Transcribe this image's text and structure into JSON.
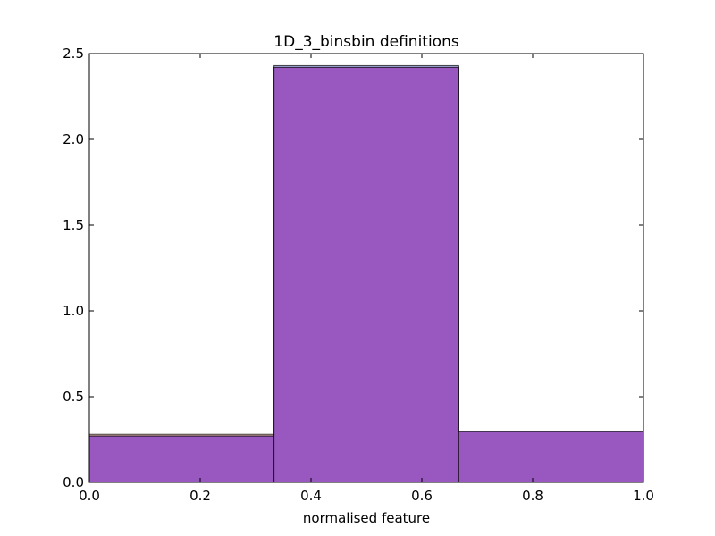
{
  "chart_data": {
    "type": "bar",
    "title": "1D_3_binsbin definitions",
    "xlabel": "normalised feature",
    "ylabel": "",
    "xlim": [
      0.0,
      1.0
    ],
    "ylim": [
      0.0,
      2.5
    ],
    "grid": false,
    "x_ticks": [
      "0.0",
      "0.2",
      "0.4",
      "0.6",
      "0.8",
      "1.0"
    ],
    "y_ticks": [
      "0.0",
      "0.5",
      "1.0",
      "1.5",
      "2.0",
      "2.5"
    ],
    "bin_edges": [
      0.0,
      0.3333,
      0.6667,
      1.0
    ],
    "series": [
      {
        "color": "#d08070",
        "values": [
          0.28,
          2.42,
          0.29
        ]
      },
      {
        "color": "#6f7fd0",
        "values": [
          0.27,
          2.43,
          0.29
        ]
      },
      {
        "color": "#9858c0",
        "values": [
          0.27,
          2.42,
          0.295
        ]
      }
    ]
  }
}
